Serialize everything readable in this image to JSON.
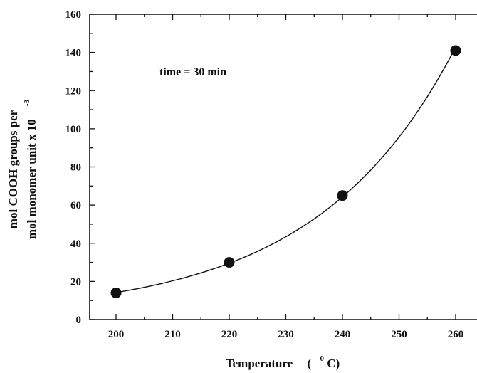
{
  "chart_data": {
    "type": "scatter",
    "title": "",
    "xlabel": "Temperature",
    "xlabel_unit_paren_open": "(",
    "xlabel_unit_sup": "0",
    "xlabel_unit_rest": "C)",
    "ylabel_line1": "mol COOH groups per",
    "ylabel_line2": "mol monomer unit x 10",
    "ylabel_sup": "-3",
    "annotation": "time = 30 min",
    "xlim": [
      195,
      265
    ],
    "ylim": [
      0,
      160
    ],
    "x_ticks": [
      200,
      210,
      220,
      230,
      240,
      250,
      260
    ],
    "y_ticks": [
      0,
      20,
      40,
      60,
      80,
      100,
      120,
      140,
      160
    ],
    "grid": false,
    "series": [
      {
        "x": [
          200,
          220,
          240,
          260
        ],
        "y": [
          14,
          30,
          65,
          141
        ]
      }
    ],
    "fit_curve": "smooth exponential fit through points",
    "color": "#111111"
  }
}
